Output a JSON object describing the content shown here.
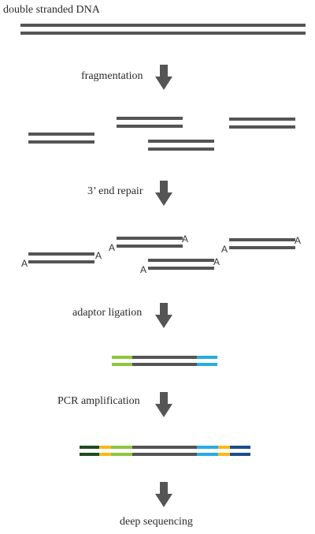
{
  "title": "double stranded DNA",
  "steps": {
    "fragmentation": "fragmentation",
    "end_repair": "3’ end repair",
    "adaptor_ligation": "adaptor ligation",
    "pcr": "PCR amplification",
    "sequencing": "deep sequencing"
  },
  "a_overhang": "A",
  "colors": {
    "dna": "#555555",
    "arrow": "#555555",
    "adaptor_left": "#8cc63f",
    "adaptor_right": "#29abe2",
    "index_yellow": "#fbb917",
    "outer_dark_green": "#1e4d1e",
    "outer_dark_blue": "#1a4e8a"
  }
}
